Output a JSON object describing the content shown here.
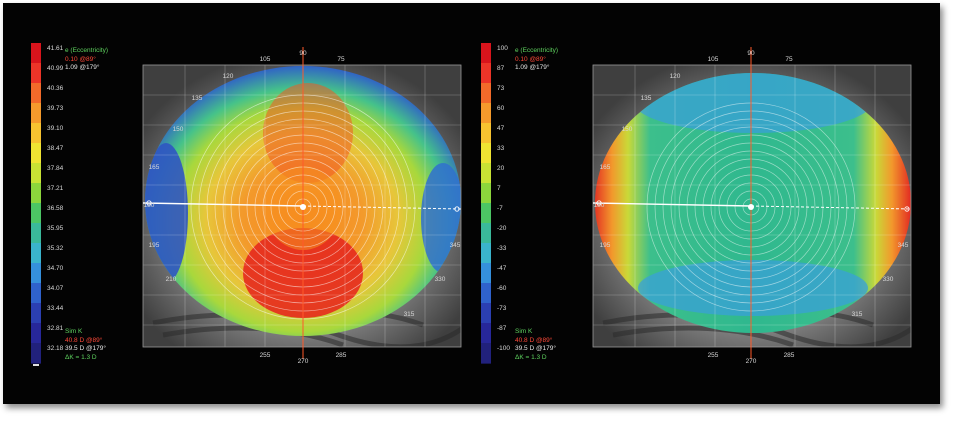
{
  "colors": {
    "scale_left": [
      "#d8141c",
      "#ec3428",
      "#f26a2a",
      "#f59a2c",
      "#f7c230",
      "#f0e432",
      "#c8e234",
      "#8cd63c",
      "#4cc664",
      "#3ab99a",
      "#3ab4cc",
      "#3590dc",
      "#2f62cc",
      "#2b3fb2",
      "#27279a",
      "#21217c"
    ],
    "scale_right": [
      "#d8141c",
      "#ec3428",
      "#f26a2a",
      "#f59a2c",
      "#f7c230",
      "#f0e432",
      "#c8e234",
      "#8cd63c",
      "#4cc664",
      "#3ab99a",
      "#3ab4cc",
      "#3590dc",
      "#2f62cc",
      "#2b3fb2",
      "#27279a",
      "#21217c"
    ]
  },
  "left_map": {
    "scale_ticks": [
      "41.61",
      "40.99",
      "40.36",
      "39.73",
      "39.10",
      "38.47",
      "37.84",
      "37.21",
      "36.58",
      "35.95",
      "35.32",
      "34.70",
      "34.07",
      "33.44",
      "32.81",
      "32.18"
    ],
    "eccentricity_label": "e (Eccentricity)",
    "eccentricity_red": "0.10 @89°",
    "eccentricity_white": "1.09 @179°",
    "simk_label": "Sim K",
    "simk_red": "40.8 D @89°",
    "simk_white": "39.5 D @179°",
    "simk_delta": "ΔK = 1.3 D",
    "axis_top": [
      "105",
      "90",
      "75"
    ],
    "axis_bottom": [
      "255",
      "270",
      "285"
    ],
    "axis_left": [
      "165",
      "180",
      "195",
      "210"
    ],
    "axis_right": [
      "345",
      "330",
      "315"
    ],
    "inner_marks": [
      "120",
      "135",
      "150",
      "165",
      "195",
      "210",
      "330",
      "345",
      "315"
    ]
  },
  "right_map": {
    "scale_ticks": [
      "100",
      "87",
      "73",
      "60",
      "47",
      "33",
      "20",
      "7",
      "-7",
      "-20",
      "-33",
      "-47",
      "-60",
      "-73",
      "-87",
      "-100"
    ],
    "eccentricity_label": "e (Eccentricity)",
    "eccentricity_red": "0.10 @89°",
    "eccentricity_white": "1.09 @179°",
    "simk_label": "Sim K",
    "simk_red": "40.8 D @89°",
    "simk_white": "39.5 D @179°",
    "simk_delta": "ΔK = 1.3 D",
    "axis_top": [
      "105",
      "90",
      "75"
    ],
    "axis_bottom": [
      "255",
      "270",
      "285"
    ],
    "axis_left": [
      "165",
      "180",
      "195"
    ],
    "axis_right": [
      "345",
      "330",
      "315"
    ],
    "inner_marks": [
      "120",
      "135",
      "150",
      "345",
      "330",
      "315"
    ]
  }
}
